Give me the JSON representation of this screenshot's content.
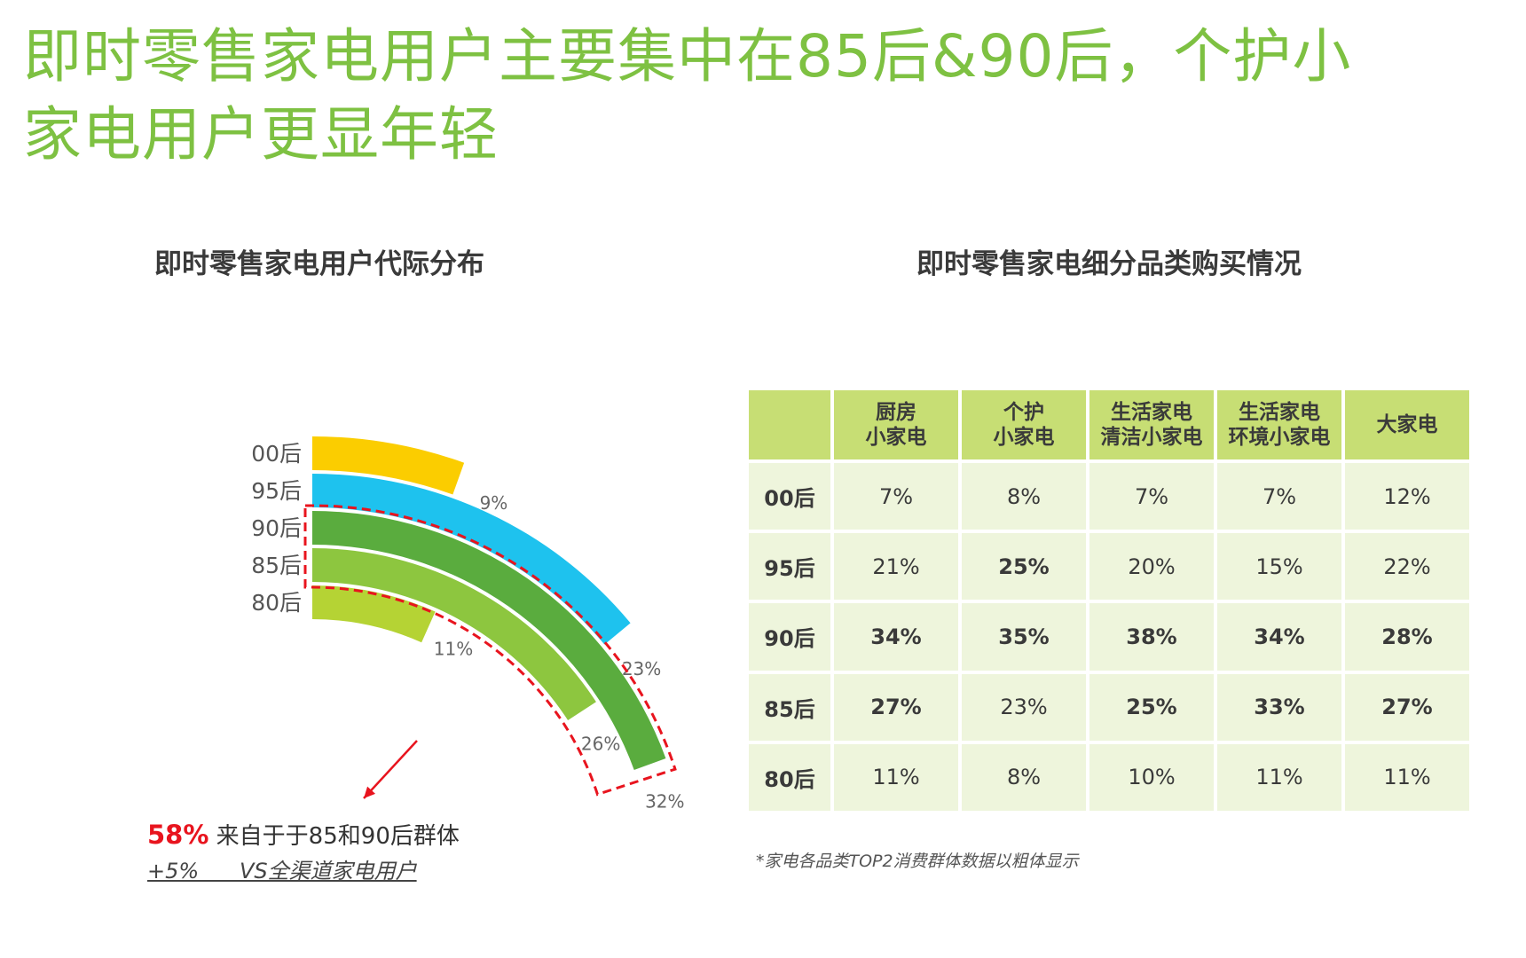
{
  "slide": {
    "title_line1": "即时零售家电用户主要集中在85后&90后，个护小",
    "title_line2": "家电用户更显年轻"
  },
  "left_panel": {
    "title": "即时零售家电用户代际分布"
  },
  "right_panel": {
    "title": "即时零售家电细分品类购买情况"
  },
  "chart_data": [
    {
      "type": "radial-bar",
      "title": "即时零售家电用户代际分布",
      "categories": [
        "00后",
        "95后",
        "90后",
        "85后",
        "80后"
      ],
      "values": [
        9,
        23,
        32,
        26,
        11
      ],
      "value_labels": [
        "9%",
        "23%",
        "32%",
        "26%",
        "11%"
      ],
      "unit": "%",
      "colors": [
        "#fbcd00",
        "#1ec2ee",
        "#5aac3e",
        "#8dc63f",
        "#b5d334"
      ],
      "highlight": {
        "categories": [
          "90后",
          "85后"
        ],
        "color": "#e8141e"
      }
    },
    {
      "type": "table",
      "title": "即时零售家电细分品类购买情况",
      "columns": [
        "厨房\n小家电",
        "个护\n小家电",
        "生活家电\n清洁小家电",
        "生活家电\n环境小家电",
        "大家电"
      ],
      "rows": [
        {
          "label": "00后",
          "values": [
            "7%",
            "8%",
            "7%",
            "7%",
            "12%"
          ],
          "bold": [
            false,
            false,
            false,
            false,
            false
          ]
        },
        {
          "label": "95后",
          "values": [
            "21%",
            "25%",
            "20%",
            "15%",
            "22%"
          ],
          "bold": [
            false,
            true,
            false,
            false,
            false
          ]
        },
        {
          "label": "90后",
          "values": [
            "34%",
            "35%",
            "38%",
            "34%",
            "28%"
          ],
          "bold": [
            true,
            true,
            true,
            true,
            true
          ]
        },
        {
          "label": "85后",
          "values": [
            "27%",
            "23%",
            "25%",
            "33%",
            "27%"
          ],
          "bold": [
            true,
            false,
            true,
            true,
            true
          ]
        },
        {
          "label": "80后",
          "values": [
            "11%",
            "8%",
            "10%",
            "11%",
            "11%"
          ],
          "bold": [
            false,
            false,
            false,
            false,
            false
          ]
        }
      ]
    }
  ],
  "callout": {
    "percent": "58%",
    "text": " 来自于于85和90后群体",
    "sub": "+5%      VS全渠道家电用户"
  },
  "footnote": "*家电各品类TOP2消费群体数据以粗体显示"
}
